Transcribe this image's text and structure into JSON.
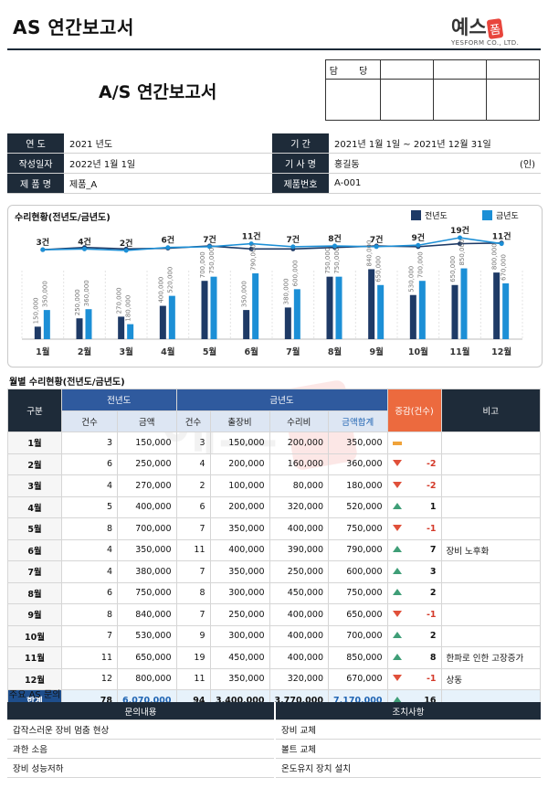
{
  "header": {
    "title": "AS 연간보고서",
    "logo_text": "예스",
    "logo_badge": "폼",
    "logo_sub": "YESFORM CO., LTD."
  },
  "doc_title": "A/S 연간보고서",
  "approval": {
    "label": "담 당"
  },
  "info": {
    "year_label": "연 도",
    "year": "2021 년도",
    "period_label": "기 간",
    "period": "2021년 1월 1일 ~ 2021년 12월 31일",
    "date_label": "작성일자",
    "date": "2022년 1월 1일",
    "tech_label": "기 사 명",
    "tech": "홍길동",
    "seal": "(인)",
    "product_label": "제 품 명",
    "product": "제품_A",
    "pno_label": "제품번호",
    "pno": "A-001"
  },
  "chart_title": "수리현황(전년도/금년도)",
  "chart_data": {
    "type": "bar",
    "categories": [
      "1월",
      "2월",
      "3월",
      "4월",
      "5월",
      "6월",
      "7월",
      "8월",
      "9월",
      "10월",
      "11월",
      "12월"
    ],
    "series": [
      {
        "name": "전년도",
        "values": [
          150000,
          250000,
          270000,
          400000,
          700000,
          350000,
          380000,
          750000,
          840000,
          530000,
          650000,
          800000
        ],
        "color": "#1e3a66"
      },
      {
        "name": "금년도",
        "values": [
          350000,
          360000,
          180000,
          520000,
          750000,
          790000,
          600000,
          750000,
          650000,
          700000,
          850000,
          670000
        ],
        "color": "#1c8fd6"
      }
    ],
    "count_labels": [
      "3건",
      "4건",
      "2건",
      "6건",
      "7건",
      "11건",
      "7건",
      "8건",
      "7건",
      "9건",
      "19건",
      "11건"
    ],
    "line_prev": [
      3,
      6,
      4,
      5,
      8,
      4,
      4,
      6,
      8,
      7,
      11,
      12
    ],
    "line_cur": [
      3,
      4,
      2,
      6,
      7,
      11,
      7,
      8,
      7,
      9,
      19,
      11
    ],
    "ylim": [
      0,
      900000
    ],
    "legend": "top-right"
  },
  "monthly_title": "월별 수리현황(전년도/금년도)",
  "table": {
    "h_month": "구분",
    "h_prev": "전년도",
    "h_cur": "금년도",
    "h_diff": "증감(건수)",
    "h_note": "비고",
    "h_cnt": "건수",
    "h_amt": "금액",
    "h_cnt2": "건수",
    "h_trip": "출장비",
    "h_repair": "수리비",
    "h_sum": "금액합계",
    "rows": [
      {
        "m": "1월",
        "pc": "3",
        "pa": "150,000",
        "cc": "3",
        "tr": "150,000",
        "rp": "200,000",
        "sm": "350,000",
        "dir": "eq",
        "d": "",
        "note": ""
      },
      {
        "m": "2월",
        "pc": "6",
        "pa": "250,000",
        "cc": "4",
        "tr": "200,000",
        "rp": "160,000",
        "sm": "360,000",
        "dir": "dn",
        "d": "-2",
        "note": ""
      },
      {
        "m": "3월",
        "pc": "4",
        "pa": "270,000",
        "cc": "2",
        "tr": "100,000",
        "rp": "80,000",
        "sm": "180,000",
        "dir": "dn",
        "d": "-2",
        "note": ""
      },
      {
        "m": "4월",
        "pc": "5",
        "pa": "400,000",
        "cc": "6",
        "tr": "200,000",
        "rp": "320,000",
        "sm": "520,000",
        "dir": "up",
        "d": "1",
        "note": ""
      },
      {
        "m": "5월",
        "pc": "8",
        "pa": "700,000",
        "cc": "7",
        "tr": "350,000",
        "rp": "400,000",
        "sm": "750,000",
        "dir": "dn",
        "d": "-1",
        "note": ""
      },
      {
        "m": "6월",
        "pc": "4",
        "pa": "350,000",
        "cc": "11",
        "tr": "400,000",
        "rp": "390,000",
        "sm": "790,000",
        "dir": "up",
        "d": "7",
        "note": "장비 노후화"
      },
      {
        "m": "7월",
        "pc": "4",
        "pa": "380,000",
        "cc": "7",
        "tr": "350,000",
        "rp": "250,000",
        "sm": "600,000",
        "dir": "up",
        "d": "3",
        "note": ""
      },
      {
        "m": "8월",
        "pc": "6",
        "pa": "750,000",
        "cc": "8",
        "tr": "300,000",
        "rp": "450,000",
        "sm": "750,000",
        "dir": "up",
        "d": "2",
        "note": ""
      },
      {
        "m": "9월",
        "pc": "8",
        "pa": "840,000",
        "cc": "7",
        "tr": "250,000",
        "rp": "400,000",
        "sm": "650,000",
        "dir": "dn",
        "d": "-1",
        "note": ""
      },
      {
        "m": "10월",
        "pc": "7",
        "pa": "530,000",
        "cc": "9",
        "tr": "300,000",
        "rp": "400,000",
        "sm": "700,000",
        "dir": "up",
        "d": "2",
        "note": ""
      },
      {
        "m": "11월",
        "pc": "11",
        "pa": "650,000",
        "cc": "19",
        "tr": "450,000",
        "rp": "400,000",
        "sm": "850,000",
        "dir": "up",
        "d": "8",
        "note": "한파로 인한 고장증가"
      },
      {
        "m": "12월",
        "pc": "12",
        "pa": "800,000",
        "cc": "11",
        "tr": "350,000",
        "rp": "320,000",
        "sm": "670,000",
        "dir": "dn",
        "d": "-1",
        "note": "상동"
      }
    ],
    "total": {
      "m": "합계",
      "pc": "78",
      "pa": "6,070,000",
      "cc": "94",
      "tr": "3,400,000",
      "rp": "3,770,000",
      "sm": "7,170,000",
      "dir": "up",
      "d": "16"
    }
  },
  "qa_title": "주요 AS 문의",
  "qa": {
    "h_q": "문의내용",
    "h_a": "조치사항",
    "rows": [
      {
        "q": "갑작스러운 장비 멈춤 현상",
        "a": "장비 교체"
      },
      {
        "q": "과한 소음",
        "a": "볼트 교체"
      },
      {
        "q": "장비 성능저하",
        "a": "온도유지 장치 설치"
      }
    ]
  }
}
